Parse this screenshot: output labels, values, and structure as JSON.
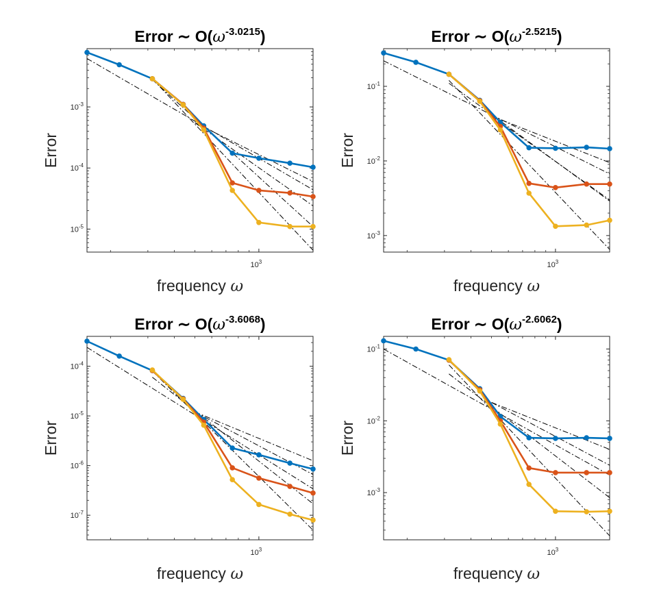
{
  "figure": {
    "xlabel": "frequency",
    "xlabel_symbol": "ω",
    "ylabel": "Error"
  },
  "colors": {
    "series_1": "#0072BD",
    "series_2": "#D95319",
    "series_3": "#EDB120",
    "reference": "#000000"
  },
  "chart_data": [
    {
      "type": "line",
      "title_prefix": "Error ∼ O(",
      "title_symbol": "ω",
      "title_exponent": "-3.0215",
      "title_suffix": ")",
      "xscale": "log",
      "yscale": "log",
      "xlim": [
        155,
        1800
      ],
      "ylim": [
        4.2e-06,
        0.009
      ],
      "x_ticks": [
        {
          "base": "10",
          "exp": "3",
          "value": 1000
        }
      ],
      "y_ticks": [
        {
          "base": "10",
          "exp": "-3",
          "value": 0.001
        },
        {
          "base": "10",
          "exp": "-4",
          "value": 0.0001
        },
        {
          "base": "10",
          "exp": "-5",
          "value": 1e-05
        }
      ],
      "series": [
        {
          "x": [
            155,
            220,
            315,
            440,
            550,
            750,
            1000,
            1400,
            1800
          ],
          "y": [
            0.0078,
            0.0049,
            0.0029,
            0.0011,
            0.00049,
            0.000175,
            0.000145,
            0.00012,
            0.000103
          ]
        },
        {
          "x": [
            315,
            440,
            550,
            750,
            1000,
            1400,
            1800
          ],
          "y": [
            0.0029,
            0.0011,
            0.00045,
            5.7e-05,
            4.3e-05,
            3.9e-05,
            3.4e-05
          ]
        },
        {
          "x": [
            315,
            440,
            550,
            750,
            1000,
            1400,
            1800
          ],
          "y": [
            0.0029,
            0.00108,
            0.00042,
            4.3e-05,
            1.28e-05,
            1.1e-05,
            1.1e-05
          ]
        }
      ],
      "reference_lines": [
        {
          "x": [
            155,
            1800
          ],
          "y": [
            0.0062,
            4.4e-05
          ]
        },
        {
          "x": [
            315,
            1800
          ],
          "y": [
            0.0028,
            1.1e-05
          ]
        },
        {
          "x": [
            315,
            1800
          ],
          "y": [
            0.0029,
            4.5e-06
          ]
        },
        {
          "x": [
            500,
            1800
          ],
          "y": [
            0.00055,
            2.4e-05
          ]
        },
        {
          "x": [
            500,
            1800
          ],
          "y": [
            0.00055,
            6e-05
          ]
        }
      ]
    },
    {
      "type": "line",
      "title_prefix": "Error ∼ O(",
      "title_symbol": "ω",
      "title_exponent": "-2.5215",
      "title_suffix": ")",
      "xscale": "log",
      "yscale": "log",
      "xlim": [
        155,
        1800
      ],
      "ylim": [
        0.0006,
        0.32
      ],
      "x_ticks": [
        {
          "base": "10",
          "exp": "3",
          "value": 1000
        }
      ],
      "y_ticks": [
        {
          "base": "10",
          "exp": "-1",
          "value": 0.1
        },
        {
          "base": "10",
          "exp": "-2",
          "value": 0.01
        },
        {
          "base": "10",
          "exp": "-3",
          "value": 0.001
        }
      ],
      "series": [
        {
          "x": [
            155,
            220,
            315,
            440,
            550,
            750,
            1000,
            1400,
            1800
          ],
          "y": [
            0.28,
            0.21,
            0.145,
            0.065,
            0.033,
            0.015,
            0.0148,
            0.0152,
            0.0146
          ]
        },
        {
          "x": [
            315,
            440,
            550,
            750,
            1000,
            1400,
            1800
          ],
          "y": [
            0.145,
            0.064,
            0.029,
            0.005,
            0.0044,
            0.0049,
            0.0049
          ]
        },
        {
          "x": [
            315,
            440,
            550,
            750,
            1000,
            1400,
            1800
          ],
          "y": [
            0.145,
            0.063,
            0.026,
            0.0037,
            0.00133,
            0.00138,
            0.0016
          ]
        }
      ],
      "reference_lines": [
        {
          "x": [
            155,
            1800
          ],
          "y": [
            0.22,
            0.0067
          ]
        },
        {
          "x": [
            315,
            1800
          ],
          "y": [
            0.11,
            0.0029
          ]
        },
        {
          "x": [
            315,
            1800
          ],
          "y": [
            0.12,
            0.00065
          ]
        },
        {
          "x": [
            500,
            1800
          ],
          "y": [
            0.04,
            0.0095
          ]
        },
        {
          "x": [
            500,
            1800
          ],
          "y": [
            0.04,
            0.003
          ]
        }
      ]
    },
    {
      "type": "line",
      "title_prefix": "Error ∼ O(",
      "title_symbol": "ω",
      "title_exponent": "-3.6068",
      "title_suffix": ")",
      "xscale": "log",
      "yscale": "log",
      "xlim": [
        155,
        1800
      ],
      "ylim": [
        3.2e-08,
        0.0004
      ],
      "x_ticks": [
        {
          "base": "10",
          "exp": "3",
          "value": 1000
        }
      ],
      "y_ticks": [
        {
          "base": "10",
          "exp": "-4",
          "value": 0.0001
        },
        {
          "base": "10",
          "exp": "-5",
          "value": 1e-05
        },
        {
          "base": "10",
          "exp": "-6",
          "value": 1e-06
        },
        {
          "base": "10",
          "exp": "-7",
          "value": 1e-07
        }
      ],
      "series": [
        {
          "x": [
            155,
            220,
            315,
            440,
            550,
            750,
            1000,
            1400,
            1800
          ],
          "y": [
            0.00032,
            0.00016,
            8.2e-05,
            2.25e-05,
            8.5e-06,
            2.25e-06,
            1.65e-06,
            1.12e-06,
            8.5e-07
          ]
        },
        {
          "x": [
            315,
            440,
            550,
            750,
            1000,
            1400,
            1800
          ],
          "y": [
            8.2e-05,
            2.2e-05,
            7.5e-06,
            9e-07,
            5.6e-07,
            3.8e-07,
            2.8e-07
          ]
        },
        {
          "x": [
            315,
            440,
            550,
            750,
            1000,
            1400,
            1800
          ],
          "y": [
            8.4e-05,
            2.15e-05,
            6.5e-06,
            5.2e-07,
            1.65e-07,
            1.05e-07,
            8e-08
          ]
        }
      ],
      "reference_lines": [
        {
          "x": [
            155,
            1800
          ],
          "y": [
            0.00024,
            3.4e-07
          ]
        },
        {
          "x": [
            315,
            1800
          ],
          "y": [
            6e-05,
            1.7e-07
          ]
        },
        {
          "x": [
            315,
            1800
          ],
          "y": [
            8e-05,
            5e-08
          ]
        },
        {
          "x": [
            500,
            1800
          ],
          "y": [
            1.2e-05,
            6.6e-07
          ]
        },
        {
          "x": [
            500,
            1800
          ],
          "y": [
            1.2e-05,
            1.25e-06
          ]
        }
      ]
    },
    {
      "type": "line",
      "title_prefix": "Error ∼ O(",
      "title_symbol": "ω",
      "title_exponent": "-2.6062",
      "title_suffix": ")",
      "xscale": "log",
      "yscale": "log",
      "xlim": [
        155,
        1800
      ],
      "ylim": [
        0.00022,
        0.15
      ],
      "x_ticks": [
        {
          "base": "10",
          "exp": "3",
          "value": 1000
        }
      ],
      "y_ticks": [
        {
          "base": "10",
          "exp": "-1",
          "value": 0.1
        },
        {
          "base": "10",
          "exp": "-2",
          "value": 0.01
        },
        {
          "base": "10",
          "exp": "-3",
          "value": 0.001
        }
      ],
      "series": [
        {
          "x": [
            155,
            220,
            315,
            440,
            550,
            750,
            1000,
            1400,
            1800
          ],
          "y": [
            0.13,
            0.1,
            0.07,
            0.028,
            0.0115,
            0.0058,
            0.0057,
            0.0058,
            0.0057
          ]
        },
        {
          "x": [
            315,
            440,
            550,
            750,
            1000,
            1400,
            1800
          ],
          "y": [
            0.07,
            0.027,
            0.01,
            0.0022,
            0.0019,
            0.0019,
            0.0019
          ]
        },
        {
          "x": [
            315,
            440,
            550,
            750,
            1000,
            1400,
            1800
          ],
          "y": [
            0.071,
            0.026,
            0.009,
            0.0013,
            0.00055,
            0.00054,
            0.00055
          ]
        }
      ],
      "reference_lines": [
        {
          "x": [
            155,
            1800
          ],
          "y": [
            0.1,
            0.00175
          ]
        },
        {
          "x": [
            315,
            1800
          ],
          "y": [
            0.045,
            0.00085
          ]
        },
        {
          "x": [
            315,
            1800
          ],
          "y": [
            0.06,
            0.00025
          ]
        },
        {
          "x": [
            500,
            1800
          ],
          "y": [
            0.018,
            0.0024
          ]
        },
        {
          "x": [
            500,
            1800
          ],
          "y": [
            0.018,
            0.004
          ]
        }
      ]
    }
  ]
}
